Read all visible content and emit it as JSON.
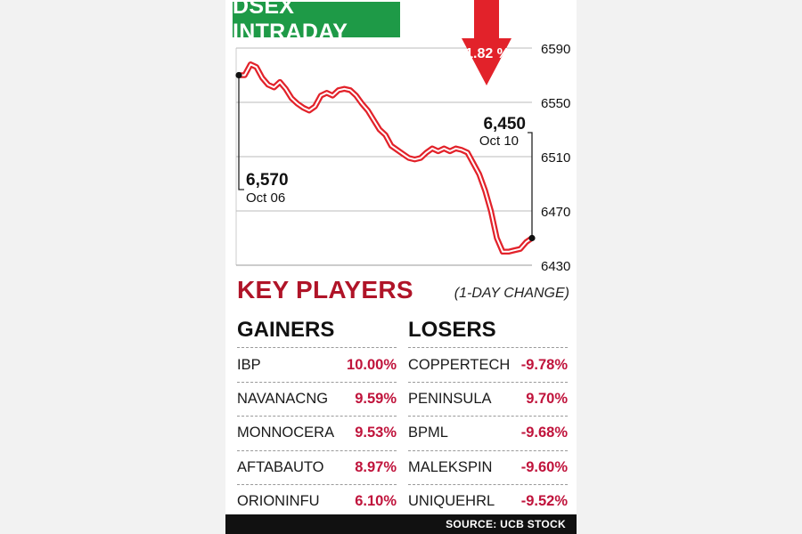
{
  "header": {
    "title": "DSEX INTRADAY"
  },
  "colors": {
    "green": "#1e9a47",
    "red": "#e2222a",
    "dark_red": "#b01428",
    "pct_red": "#c0143c"
  },
  "chart_data": {
    "type": "line",
    "ylim": [
      6430,
      6590
    ],
    "yticks": [
      6590,
      6550,
      6510,
      6470,
      6430
    ],
    "grid": true,
    "change_badge": "1.82 %",
    "start": {
      "value": "6,570",
      "date": "Oct 06"
    },
    "end": {
      "value": "6,450",
      "date": "Oct 10"
    },
    "series": [
      {
        "values": [
          6570,
          6570,
          6578,
          6576,
          6568,
          6563,
          6561,
          6565,
          6560,
          6553,
          6549,
          6546,
          6544,
          6547,
          6555,
          6557,
          6555,
          6559,
          6560,
          6559,
          6555,
          6549,
          6544,
          6537,
          6530,
          6526,
          6518,
          6515,
          6512,
          6509,
          6508,
          6509,
          6513,
          6516,
          6514,
          6516,
          6514,
          6516,
          6515,
          6513,
          6505,
          6497,
          6485,
          6470,
          6450,
          6440,
          6440,
          6441,
          6442,
          6447,
          6450
        ]
      }
    ]
  },
  "players": {
    "title": "KEY PLAYERS",
    "note": "(1-DAY CHANGE)",
    "gainers_title": "GAINERS",
    "losers_title": "LOSERS",
    "gainers": [
      {
        "name": "IBP",
        "change": "10.00%"
      },
      {
        "name": "NAVANACNG",
        "change": "9.59%"
      },
      {
        "name": "MONNOCERA",
        "change": "9.53%"
      },
      {
        "name": "AFTABAUTO",
        "change": "8.97%"
      },
      {
        "name": "ORIONINFU",
        "change": "6.10%"
      }
    ],
    "losers": [
      {
        "name": "COPPERTECH",
        "change": "-9.78%"
      },
      {
        "name": "PENINSULA",
        "change": "9.70%"
      },
      {
        "name": "BPML",
        "change": "-9.68%"
      },
      {
        "name": "MALEKSPIN",
        "change": "-9.60%"
      },
      {
        "name": "UNIQUEHRL",
        "change": "-9.52%"
      }
    ]
  },
  "source": "SOURCE: UCB STOCK"
}
